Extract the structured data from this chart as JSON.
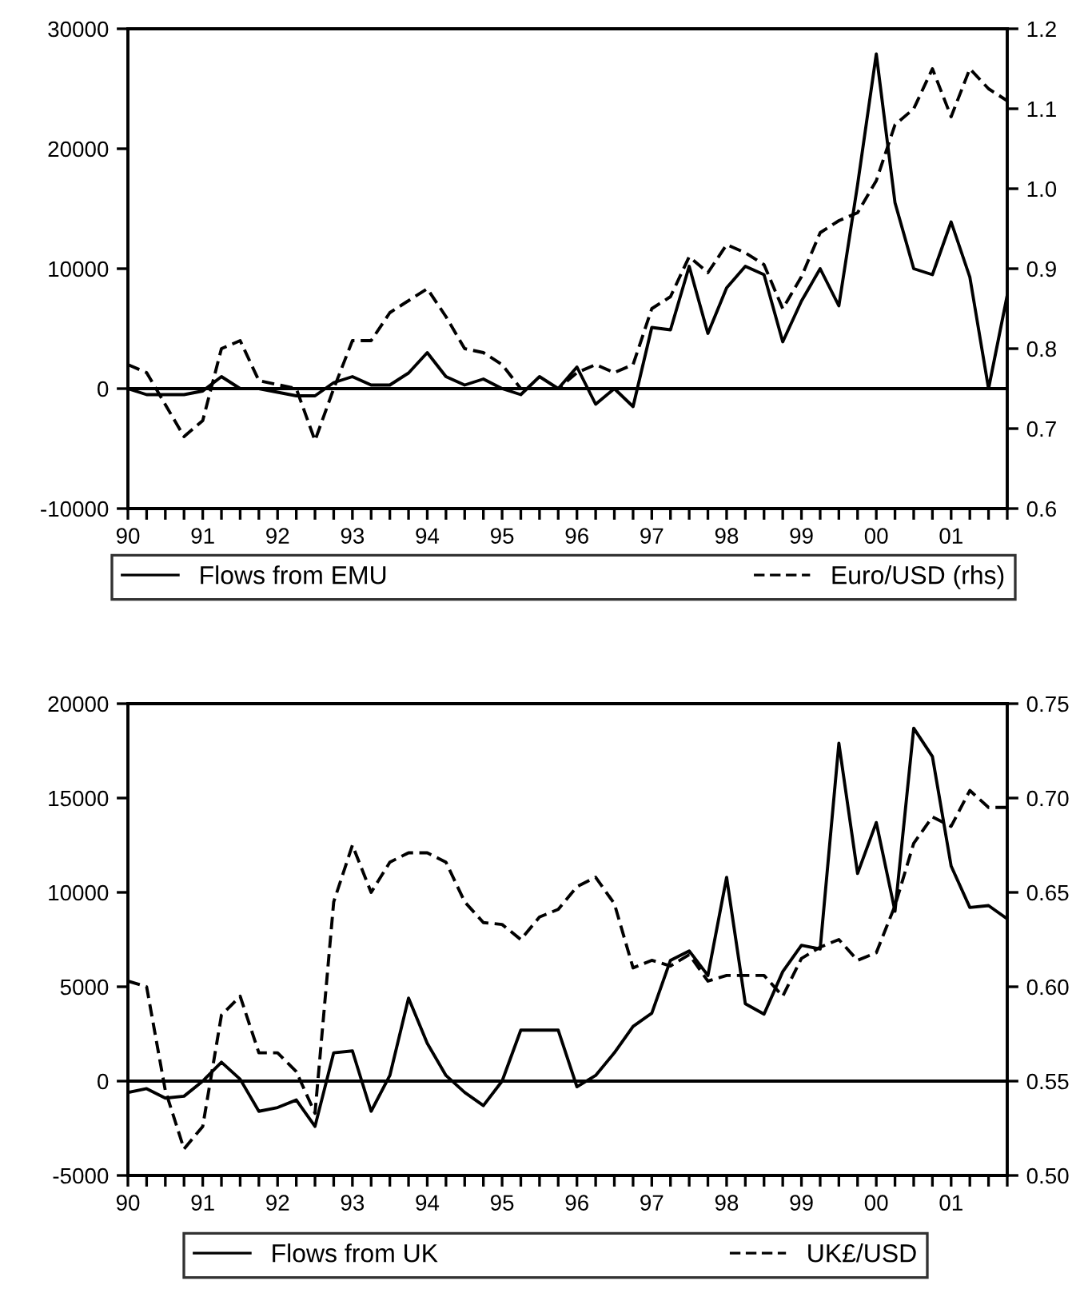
{
  "chart_data": [
    {
      "type": "line",
      "legend": "bottom",
      "grid": false,
      "marker": "none",
      "x": [
        1990,
        1990.25,
        1990.5,
        1990.75,
        1991,
        1991.25,
        1991.5,
        1991.75,
        1992,
        1992.25,
        1992.5,
        1992.75,
        1993,
        1993.25,
        1993.5,
        1993.75,
        1994,
        1994.25,
        1994.5,
        1994.75,
        1995,
        1995.25,
        1995.5,
        1995.75,
        1996,
        1996.25,
        1996.5,
        1996.75,
        1997,
        1997.25,
        1997.5,
        1997.75,
        1998,
        1998.25,
        1998.5,
        1998.75,
        1999,
        1999.25,
        1999.5,
        1999.75,
        2000,
        2000.25,
        2000.5,
        2000.75,
        2001,
        2001.25,
        2001.5,
        2001.75
      ],
      "xlim": [
        1990,
        2001.75
      ],
      "xticks": [
        {
          "value": 1990,
          "label": "90"
        },
        {
          "value": 1990.25,
          "label": null
        },
        {
          "value": 1990.5,
          "label": null
        },
        {
          "value": 1990.75,
          "label": null
        },
        {
          "value": 1991,
          "label": "91"
        },
        {
          "value": 1991.25,
          "label": null
        },
        {
          "value": 1991.5,
          "label": null
        },
        {
          "value": 1991.75,
          "label": null
        },
        {
          "value": 1992,
          "label": "92"
        },
        {
          "value": 1992.25,
          "label": null
        },
        {
          "value": 1992.5,
          "label": null
        },
        {
          "value": 1992.75,
          "label": null
        },
        {
          "value": 1993,
          "label": "93"
        },
        {
          "value": 1993.25,
          "label": null
        },
        {
          "value": 1993.5,
          "label": null
        },
        {
          "value": 1993.75,
          "label": null
        },
        {
          "value": 1994,
          "label": "94"
        },
        {
          "value": 1994.25,
          "label": null
        },
        {
          "value": 1994.5,
          "label": null
        },
        {
          "value": 1994.75,
          "label": null
        },
        {
          "value": 1995,
          "label": "95"
        },
        {
          "value": 1995.25,
          "label": null
        },
        {
          "value": 1995.5,
          "label": null
        },
        {
          "value": 1995.75,
          "label": null
        },
        {
          "value": 1996,
          "label": "96"
        },
        {
          "value": 1996.25,
          "label": null
        },
        {
          "value": 1996.5,
          "label": null
        },
        {
          "value": 1996.75,
          "label": null
        },
        {
          "value": 1997,
          "label": "97"
        },
        {
          "value": 1997.25,
          "label": null
        },
        {
          "value": 1997.5,
          "label": null
        },
        {
          "value": 1997.75,
          "label": null
        },
        {
          "value": 1998,
          "label": "98"
        },
        {
          "value": 1998.25,
          "label": null
        },
        {
          "value": 1998.5,
          "label": null
        },
        {
          "value": 1998.75,
          "label": null
        },
        {
          "value": 1999,
          "label": "99"
        },
        {
          "value": 1999.25,
          "label": null
        },
        {
          "value": 1999.5,
          "label": null
        },
        {
          "value": 1999.75,
          "label": null
        },
        {
          "value": 2000,
          "label": "00"
        },
        {
          "value": 2000.25,
          "label": null
        },
        {
          "value": 2000.5,
          "label": null
        },
        {
          "value": 2000.75,
          "label": null
        },
        {
          "value": 2001,
          "label": "01"
        },
        {
          "value": 2001.25,
          "label": null
        },
        {
          "value": 2001.5,
          "label": null
        },
        {
          "value": 2001.75,
          "label": null
        }
      ],
      "ylim": [
        -10000,
        30000
      ],
      "yticks": [
        -10000,
        0,
        10000,
        20000,
        30000
      ],
      "y2lim": [
        0.6,
        1.2
      ],
      "y2ticks": [
        {
          "value": 0.6,
          "label": "0.6"
        },
        {
          "value": 0.7,
          "label": "0.7"
        },
        {
          "value": 0.8,
          "label": "0.8"
        },
        {
          "value": 0.9,
          "label": "0.9"
        },
        {
          "value": 1.0,
          "label": "1.0"
        },
        {
          "value": 1.1,
          "label": "1.1"
        },
        {
          "value": 1.2,
          "label": "1.2"
        }
      ],
      "ref_lines": [
        {
          "axis": "y",
          "value": 0,
          "color": "#000000",
          "line_style": "solid"
        }
      ],
      "series": [
        {
          "name": "Flows from EMU",
          "color": "#000000",
          "line_style": "solid",
          "values": [
            0,
            -500,
            -500,
            -500,
            -200,
            1000,
            0,
            0,
            -300,
            -600,
            -600,
            500,
            1000,
            300,
            300,
            1300,
            3000,
            1000,
            300,
            800,
            0,
            -500,
            1000,
            0,
            1800,
            -1300,
            0,
            -1500,
            5100,
            4900,
            10200,
            4600,
            8400,
            10200,
            9500,
            3900,
            7300,
            10000,
            6900,
            17000,
            27900,
            15500,
            10000,
            9500,
            13900,
            9300,
            0,
            7800
          ]
        },
        {
          "name": "Euro/USD (rhs)",
          "color": "#000000",
          "line_style": "dashed",
          "axis": "y2",
          "values": [
            0.78,
            0.77,
            0.73,
            0.69,
            0.71,
            0.8,
            0.81,
            0.76,
            0.755,
            0.75,
            0.685,
            0.75,
            0.81,
            0.81,
            0.845,
            0.86,
            0.875,
            0.84,
            0.8,
            0.795,
            0.78,
            0.75,
            0.75,
            0.75,
            0.77,
            0.78,
            0.77,
            0.78,
            0.85,
            0.865,
            0.915,
            0.895,
            0.93,
            0.92,
            0.905,
            0.85,
            0.89,
            0.945,
            0.96,
            0.97,
            1.01,
            1.08,
            1.1,
            1.15,
            1.09,
            1.15,
            1.125,
            1.11
          ]
        }
      ]
    },
    {
      "type": "line",
      "legend": "bottom",
      "grid": false,
      "marker": "none",
      "x": [
        1990,
        1990.25,
        1990.5,
        1990.75,
        1991,
        1991.25,
        1991.5,
        1991.75,
        1992,
        1992.25,
        1992.5,
        1992.75,
        1993,
        1993.25,
        1993.5,
        1993.75,
        1994,
        1994.25,
        1994.5,
        1994.75,
        1995,
        1995.25,
        1995.5,
        1995.75,
        1996,
        1996.25,
        1996.5,
        1996.75,
        1997,
        1997.25,
        1997.5,
        1997.75,
        1998,
        1998.25,
        1998.5,
        1998.75,
        1999,
        1999.25,
        1999.5,
        1999.75,
        2000,
        2000.25,
        2000.5,
        2000.75,
        2001,
        2001.25,
        2001.5,
        2001.75
      ],
      "xlim": [
        1990,
        2001.75
      ],
      "xticks": [
        {
          "value": 1990,
          "label": "90"
        },
        {
          "value": 1990.25,
          "label": null
        },
        {
          "value": 1990.5,
          "label": null
        },
        {
          "value": 1990.75,
          "label": null
        },
        {
          "value": 1991,
          "label": "91"
        },
        {
          "value": 1991.25,
          "label": null
        },
        {
          "value": 1991.5,
          "label": null
        },
        {
          "value": 1991.75,
          "label": null
        },
        {
          "value": 1992,
          "label": "92"
        },
        {
          "value": 1992.25,
          "label": null
        },
        {
          "value": 1992.5,
          "label": null
        },
        {
          "value": 1992.75,
          "label": null
        },
        {
          "value": 1993,
          "label": "93"
        },
        {
          "value": 1993.25,
          "label": null
        },
        {
          "value": 1993.5,
          "label": null
        },
        {
          "value": 1993.75,
          "label": null
        },
        {
          "value": 1994,
          "label": "94"
        },
        {
          "value": 1994.25,
          "label": null
        },
        {
          "value": 1994.5,
          "label": null
        },
        {
          "value": 1994.75,
          "label": null
        },
        {
          "value": 1995,
          "label": "95"
        },
        {
          "value": 1995.25,
          "label": null
        },
        {
          "value": 1995.5,
          "label": null
        },
        {
          "value": 1995.75,
          "label": null
        },
        {
          "value": 1996,
          "label": "96"
        },
        {
          "value": 1996.25,
          "label": null
        },
        {
          "value": 1996.5,
          "label": null
        },
        {
          "value": 1996.75,
          "label": null
        },
        {
          "value": 1997,
          "label": "97"
        },
        {
          "value": 1997.25,
          "label": null
        },
        {
          "value": 1997.5,
          "label": null
        },
        {
          "value": 1997.75,
          "label": null
        },
        {
          "value": 1998,
          "label": "98"
        },
        {
          "value": 1998.25,
          "label": null
        },
        {
          "value": 1998.5,
          "label": null
        },
        {
          "value": 1998.75,
          "label": null
        },
        {
          "value": 1999,
          "label": "99"
        },
        {
          "value": 1999.25,
          "label": null
        },
        {
          "value": 1999.5,
          "label": null
        },
        {
          "value": 1999.75,
          "label": null
        },
        {
          "value": 2000,
          "label": "00"
        },
        {
          "value": 2000.25,
          "label": null
        },
        {
          "value": 2000.5,
          "label": null
        },
        {
          "value": 2000.75,
          "label": null
        },
        {
          "value": 2001,
          "label": "01"
        },
        {
          "value": 2001.25,
          "label": null
        },
        {
          "value": 2001.5,
          "label": null
        },
        {
          "value": 2001.75,
          "label": null
        }
      ],
      "ylim": [
        -5000,
        20000
      ],
      "yticks": [
        -5000,
        0,
        5000,
        10000,
        15000,
        20000
      ],
      "y2lim": [
        0.5,
        0.75
      ],
      "y2ticks": [
        {
          "value": 0.5,
          "label": "0.50"
        },
        {
          "value": 0.55,
          "label": "0.55"
        },
        {
          "value": 0.6,
          "label": "0.60"
        },
        {
          "value": 0.65,
          "label": "0.65"
        },
        {
          "value": 0.7,
          "label": "0.70"
        },
        {
          "value": 0.75,
          "label": "0.75"
        }
      ],
      "ref_lines": [
        {
          "axis": "y",
          "value": 0,
          "color": "#000000",
          "line_style": "solid"
        }
      ],
      "series": [
        {
          "name": "Flows from UK",
          "color": "#000000",
          "line_style": "solid",
          "values": [
            -600,
            -400,
            -900,
            -800,
            0,
            1000,
            100,
            -1600,
            -1400,
            -1000,
            -2400,
            1500,
            1600,
            -1600,
            300,
            4400,
            2000,
            300,
            -600,
            -1300,
            0,
            2700,
            2700,
            2700,
            -300,
            300,
            1500,
            2900,
            3600,
            6400,
            6900,
            5600,
            10800,
            4100,
            3550,
            5800,
            7200,
            7000,
            17900,
            11000,
            13700,
            9000,
            18700,
            17200,
            11400,
            9200,
            9300,
            8600
          ]
        },
        {
          "name": "UK£/USD",
          "color": "#000000",
          "line_style": "dashed",
          "axis": "y2",
          "values": [
            0.603,
            0.6,
            0.545,
            0.514,
            0.526,
            0.585,
            0.595,
            0.565,
            0.565,
            0.555,
            0.533,
            0.645,
            0.675,
            0.65,
            0.666,
            0.671,
            0.671,
            0.666,
            0.645,
            0.634,
            0.633,
            0.625,
            0.637,
            0.641,
            0.653,
            0.658,
            0.644,
            0.61,
            0.614,
            0.611,
            0.617,
            0.603,
            0.606,
            0.606,
            0.606,
            0.595,
            0.615,
            0.621,
            0.625,
            0.614,
            0.618,
            0.643,
            0.676,
            0.69,
            0.685,
            0.704,
            0.695,
            0.695
          ]
        }
      ]
    }
  ]
}
